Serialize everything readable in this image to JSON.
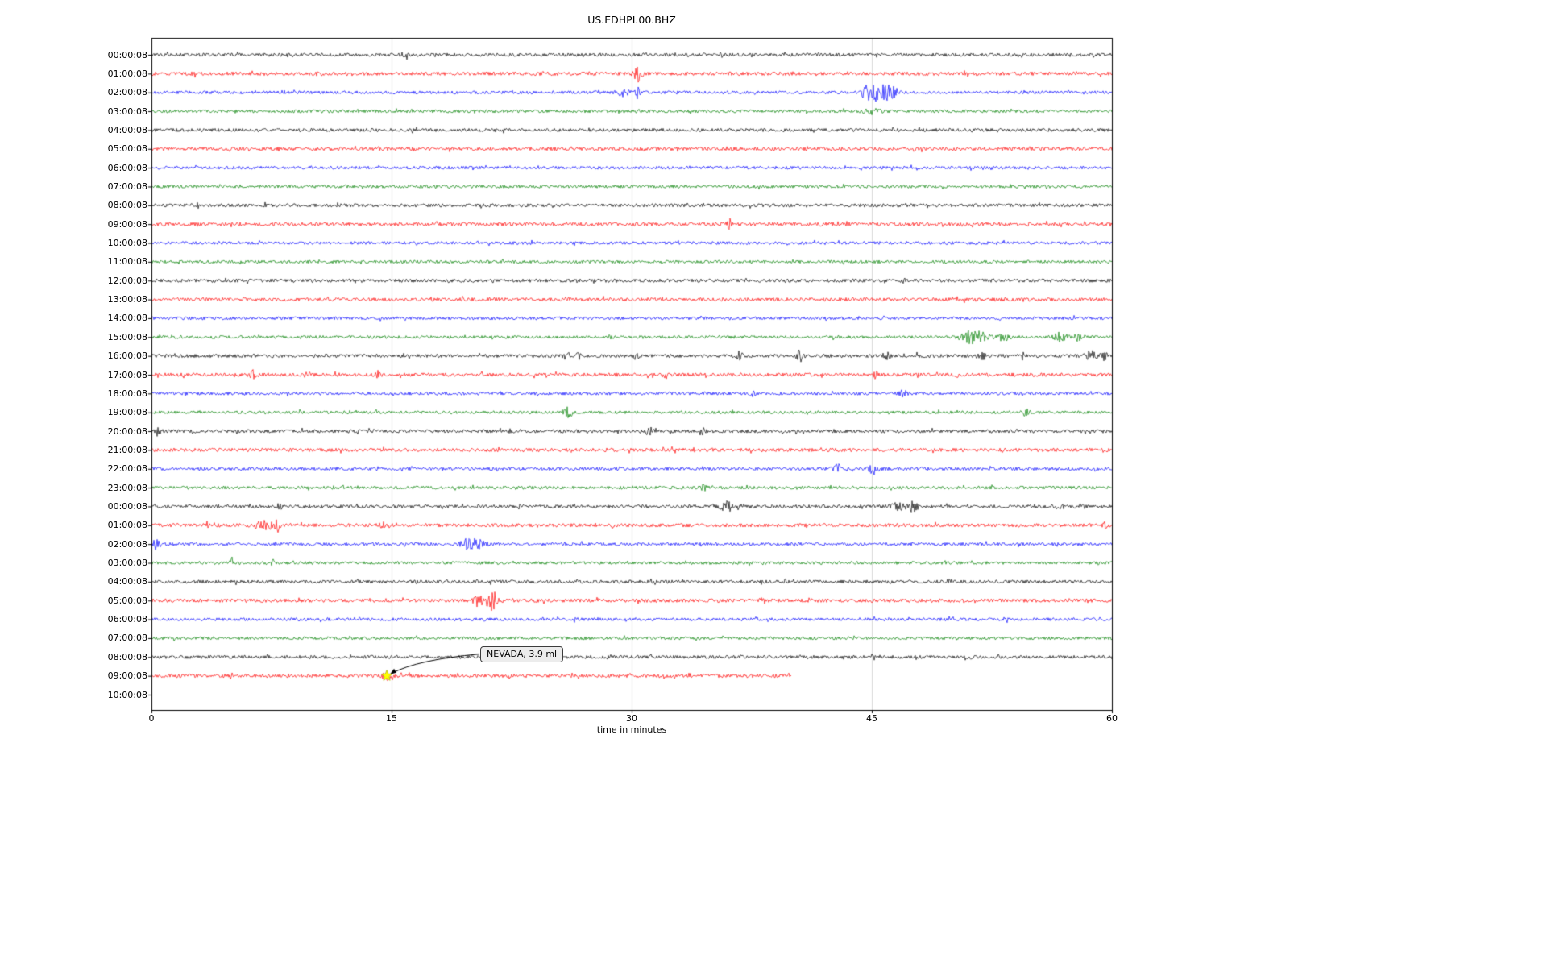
{
  "chart_data": {
    "type": "line",
    "subtype": "helicorder-seismogram",
    "title": "US.EDHPI.00.BHZ",
    "xlabel": "time in minutes",
    "xlim": [
      0,
      60
    ],
    "xticks": [
      0,
      15,
      30,
      45,
      60
    ],
    "grid": true,
    "grid_color": "#d9d9d9",
    "trace_color_cycle": [
      "#000000",
      "#ff0000",
      "#0000ff",
      "#008000"
    ],
    "noise_amp_by_color": {
      "#000000": 2.1,
      "#ff0000": 2.2,
      "#0000ff": 1.9,
      "#008000": 1.9
    },
    "rows": [
      {
        "label": "00:00:08",
        "color": "#000000",
        "end_minute": 60
      },
      {
        "label": "01:00:08",
        "color": "#ff0000",
        "end_minute": 60
      },
      {
        "label": "02:00:08",
        "color": "#0000ff",
        "end_minute": 60
      },
      {
        "label": "03:00:08",
        "color": "#008000",
        "end_minute": 60
      },
      {
        "label": "04:00:08",
        "color": "#000000",
        "end_minute": 60
      },
      {
        "label": "05:00:08",
        "color": "#ff0000",
        "end_minute": 60
      },
      {
        "label": "06:00:08",
        "color": "#0000ff",
        "end_minute": 60
      },
      {
        "label": "07:00:08",
        "color": "#008000",
        "end_minute": 60
      },
      {
        "label": "08:00:08",
        "color": "#000000",
        "end_minute": 60
      },
      {
        "label": "09:00:08",
        "color": "#ff0000",
        "end_minute": 60
      },
      {
        "label": "10:00:08",
        "color": "#0000ff",
        "end_minute": 60
      },
      {
        "label": "11:00:08",
        "color": "#008000",
        "end_minute": 60
      },
      {
        "label": "12:00:08",
        "color": "#000000",
        "end_minute": 60
      },
      {
        "label": "13:00:08",
        "color": "#ff0000",
        "end_minute": 60
      },
      {
        "label": "14:00:08",
        "color": "#0000ff",
        "end_minute": 60
      },
      {
        "label": "15:00:08",
        "color": "#008000",
        "end_minute": 60
      },
      {
        "label": "16:00:08",
        "color": "#000000",
        "end_minute": 60
      },
      {
        "label": "17:00:08",
        "color": "#ff0000",
        "end_minute": 60
      },
      {
        "label": "18:00:08",
        "color": "#0000ff",
        "end_minute": 60
      },
      {
        "label": "19:00:08",
        "color": "#008000",
        "end_minute": 60
      },
      {
        "label": "20:00:08",
        "color": "#000000",
        "end_minute": 60
      },
      {
        "label": "21:00:08",
        "color": "#ff0000",
        "end_minute": 60
      },
      {
        "label": "22:00:08",
        "color": "#0000ff",
        "end_minute": 60
      },
      {
        "label": "23:00:08",
        "color": "#008000",
        "end_minute": 60
      },
      {
        "label": "00:00:08",
        "color": "#000000",
        "end_minute": 60
      },
      {
        "label": "01:00:08",
        "color": "#ff0000",
        "end_minute": 60
      },
      {
        "label": "02:00:08",
        "color": "#0000ff",
        "end_minute": 60
      },
      {
        "label": "03:00:08",
        "color": "#008000",
        "end_minute": 60
      },
      {
        "label": "04:00:08",
        "color": "#000000",
        "end_minute": 60
      },
      {
        "label": "05:00:08",
        "color": "#ff0000",
        "end_minute": 60
      },
      {
        "label": "06:00:08",
        "color": "#0000ff",
        "end_minute": 60
      },
      {
        "label": "07:00:08",
        "color": "#008000",
        "end_minute": 60
      },
      {
        "label": "08:00:08",
        "color": "#000000",
        "end_minute": 60
      },
      {
        "label": "09:00:08",
        "color": "#ff0000",
        "end_minute": 40
      },
      {
        "label": "10:00:08",
        "color": null,
        "end_minute": 0
      }
    ],
    "events": [
      {
        "row": 0,
        "minute": 15.9,
        "amp": 5,
        "dur": 0.2
      },
      {
        "row": 1,
        "minute": 2.5,
        "amp": 5,
        "dur": 0.18
      },
      {
        "row": 1,
        "minute": 30.4,
        "amp": 9,
        "dur": 0.25
      },
      {
        "row": 2,
        "minute": 22.7,
        "amp": 4,
        "dur": 0.2
      },
      {
        "row": 2,
        "minute": 29.4,
        "amp": 4,
        "dur": 0.4
      },
      {
        "row": 2,
        "minute": 30.4,
        "amp": 5,
        "dur": 0.25
      },
      {
        "row": 2,
        "minute": 44.9,
        "amp": 12,
        "dur": 0.5
      },
      {
        "row": 2,
        "minute": 45.7,
        "amp": 10,
        "dur": 0.4
      },
      {
        "row": 2,
        "minute": 46.3,
        "amp": 7,
        "dur": 0.3
      },
      {
        "row": 3,
        "minute": 45.0,
        "amp": 3,
        "dur": 0.6
      },
      {
        "row": 9,
        "minute": 36.1,
        "amp": 6,
        "dur": 0.15
      },
      {
        "row": 15,
        "minute": 51.4,
        "amp": 8,
        "dur": 0.8
      },
      {
        "row": 15,
        "minute": 53.2,
        "amp": 5,
        "dur": 0.3
      },
      {
        "row": 15,
        "minute": 56.8,
        "amp": 5,
        "dur": 0.4
      },
      {
        "row": 15,
        "minute": 57.9,
        "amp": 4,
        "dur": 0.3
      },
      {
        "row": 16,
        "minute": 25.9,
        "amp": 5,
        "dur": 0.2
      },
      {
        "row": 16,
        "minute": 26.7,
        "amp": 4,
        "dur": 0.15
      },
      {
        "row": 16,
        "minute": 30.3,
        "amp": 4,
        "dur": 0.15
      },
      {
        "row": 16,
        "minute": 36.7,
        "amp": 5,
        "dur": 0.2
      },
      {
        "row": 16,
        "minute": 40.5,
        "amp": 7,
        "dur": 0.15
      },
      {
        "row": 16,
        "minute": 45.9,
        "amp": 5,
        "dur": 0.2
      },
      {
        "row": 16,
        "minute": 47.9,
        "amp": 4,
        "dur": 0.15
      },
      {
        "row": 16,
        "minute": 51.9,
        "amp": 5,
        "dur": 0.2
      },
      {
        "row": 16,
        "minute": 54.4,
        "amp": 4,
        "dur": 0.15
      },
      {
        "row": 16,
        "minute": 58.7,
        "amp": 6,
        "dur": 0.3
      },
      {
        "row": 16,
        "minute": 59.5,
        "amp": 5,
        "dur": 0.2
      },
      {
        "row": 17,
        "minute": 6.3,
        "amp": 5,
        "dur": 0.2
      },
      {
        "row": 17,
        "minute": 9.7,
        "amp": 4,
        "dur": 0.2
      },
      {
        "row": 17,
        "minute": 11.5,
        "amp": 3,
        "dur": 0.15
      },
      {
        "row": 17,
        "minute": 14.2,
        "amp": 4,
        "dur": 0.15
      },
      {
        "row": 17,
        "minute": 32.1,
        "amp": 4,
        "dur": 0.15
      },
      {
        "row": 17,
        "minute": 45.2,
        "amp": 4,
        "dur": 0.2
      },
      {
        "row": 17,
        "minute": 50.3,
        "amp": 3,
        "dur": 0.15
      },
      {
        "row": 18,
        "minute": 37.6,
        "amp": 5,
        "dur": 0.2
      },
      {
        "row": 18,
        "minute": 47.0,
        "amp": 5,
        "dur": 0.25
      },
      {
        "row": 19,
        "minute": 26.0,
        "amp": 6,
        "dur": 0.3
      },
      {
        "row": 19,
        "minute": 54.6,
        "amp": 4,
        "dur": 0.2
      },
      {
        "row": 20,
        "minute": 0.4,
        "amp": 7,
        "dur": 0.2
      },
      {
        "row": 20,
        "minute": 22.4,
        "amp": 4,
        "dur": 0.15
      },
      {
        "row": 20,
        "minute": 31.1,
        "amp": 5,
        "dur": 0.25
      },
      {
        "row": 20,
        "minute": 34.4,
        "amp": 5,
        "dur": 0.2
      },
      {
        "row": 22,
        "minute": 42.9,
        "amp": 5,
        "dur": 0.3
      },
      {
        "row": 22,
        "minute": 45.1,
        "amp": 6,
        "dur": 0.3
      },
      {
        "row": 23,
        "minute": 34.5,
        "amp": 3,
        "dur": 0.2
      },
      {
        "row": 24,
        "minute": 8.0,
        "amp": 4,
        "dur": 0.2
      },
      {
        "row": 24,
        "minute": 36.2,
        "amp": 7,
        "dur": 0.6
      },
      {
        "row": 24,
        "minute": 46.8,
        "amp": 7,
        "dur": 0.5
      },
      {
        "row": 24,
        "minute": 47.6,
        "amp": 5,
        "dur": 0.3
      },
      {
        "row": 24,
        "minute": 56.7,
        "amp": 4,
        "dur": 0.3
      },
      {
        "row": 24,
        "minute": 58.2,
        "amp": 3,
        "dur": 0.2
      },
      {
        "row": 25,
        "minute": 3.5,
        "amp": 4,
        "dur": 0.2
      },
      {
        "row": 25,
        "minute": 7.0,
        "amp": 6,
        "dur": 0.5
      },
      {
        "row": 25,
        "minute": 7.9,
        "amp": 7,
        "dur": 0.2
      },
      {
        "row": 25,
        "minute": 14.4,
        "amp": 3,
        "dur": 0.2
      },
      {
        "row": 25,
        "minute": 59.6,
        "amp": 3,
        "dur": 0.2
      },
      {
        "row": 26,
        "minute": 0.3,
        "amp": 8,
        "dur": 0.2
      },
      {
        "row": 26,
        "minute": 19.9,
        "amp": 7,
        "dur": 0.5
      },
      {
        "row": 26,
        "minute": 20.7,
        "amp": 5,
        "dur": 0.3
      },
      {
        "row": 27,
        "minute": 5.0,
        "amp": 6,
        "dur": 0.15
      },
      {
        "row": 27,
        "minute": 7.6,
        "amp": 4,
        "dur": 0.15
      },
      {
        "row": 29,
        "minute": 20.4,
        "amp": 6,
        "dur": 0.3
      },
      {
        "row": 29,
        "minute": 21.3,
        "amp": 11,
        "dur": 0.4
      },
      {
        "row": 29,
        "minute": 38.2,
        "amp": 4,
        "dur": 0.15
      },
      {
        "row": 30,
        "minute": 26.5,
        "amp": 3,
        "dur": 0.15
      },
      {
        "row": 30,
        "minute": 53.4,
        "amp": 4,
        "dur": 0.2
      },
      {
        "row": 33,
        "minute": 14.7,
        "amp": 4,
        "dur": 0.3
      }
    ],
    "annotation": {
      "text": "NEVADA, 3.9 ml",
      "row": 33,
      "minute": 14.7,
      "marker": "star",
      "marker_color": "#ffff00"
    }
  }
}
